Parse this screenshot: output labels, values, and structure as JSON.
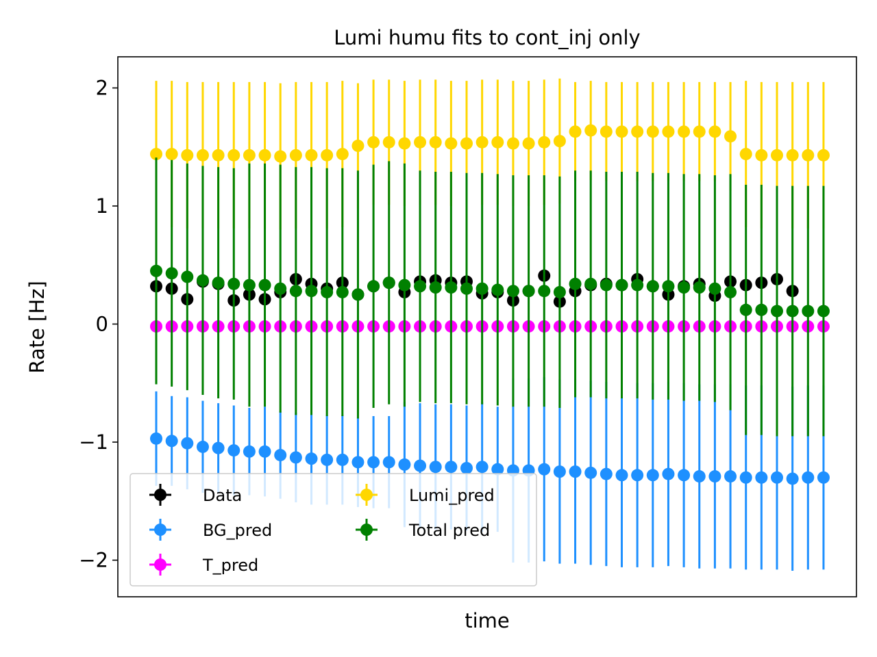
{
  "chart_data": {
    "type": "scatter",
    "title": "Lumi humu fits to cont_inj only",
    "xlabel": "time",
    "ylabel": "Rate [Hz]",
    "ylim": [
      -2.3,
      2.25
    ],
    "xlim": [
      -2.5,
      47.5
    ],
    "yticks": [
      {
        "value": 2,
        "label": "2"
      },
      {
        "value": 1,
        "label": "1"
      },
      {
        "value": 0,
        "label": "0"
      },
      {
        "value": -1,
        "label": "−1"
      },
      {
        "value": -2,
        "label": "−2"
      }
    ],
    "x_ticks_visible": false,
    "grid": false,
    "legend": {
      "placement": "lower-left",
      "columns": 2
    },
    "x": [
      0,
      1,
      2,
      3,
      4,
      5,
      6,
      7,
      8,
      9,
      10,
      11,
      12,
      13,
      14,
      15,
      16,
      17,
      18,
      19,
      20,
      21,
      22,
      23,
      24,
      25,
      26,
      27,
      28,
      29,
      30,
      31,
      32,
      33,
      34,
      35,
      36,
      37,
      38,
      39,
      40,
      41,
      42,
      43,
      44,
      45
    ],
    "series": [
      {
        "name": "Data",
        "color": "#000000",
        "values": [
          0.32,
          0.3,
          0.21,
          0.36,
          0.34,
          0.2,
          0.25,
          0.21,
          0.27,
          0.38,
          0.34,
          0.3,
          0.35,
          0.25,
          0.32,
          0.35,
          0.27,
          0.36,
          0.37,
          0.35,
          0.36,
          0.26,
          0.27,
          0.2,
          0.28,
          0.41,
          0.19,
          0.28,
          0.33,
          0.34,
          0.33,
          0.38,
          0.32,
          0.25,
          0.32,
          0.34,
          0.24,
          0.36,
          0.33,
          0.35,
          0.38,
          0.28
        ],
        "values_x": [
          0,
          1,
          2,
          3,
          4,
          5,
          6,
          7,
          8,
          9,
          10,
          11,
          12,
          13,
          14,
          15,
          16,
          17,
          18,
          19,
          20,
          21,
          22,
          23,
          24,
          25,
          26,
          27,
          28,
          29,
          30,
          31,
          32,
          33,
          34,
          35,
          36,
          37,
          38,
          39,
          40,
          41
        ],
        "err": [
          0.0,
          0.0,
          0.0,
          0.0,
          0.0,
          0.0,
          0.0,
          0.0,
          0.0,
          0.0,
          0.0,
          0.0,
          0.0,
          0.0,
          0.0,
          0.0,
          0.0,
          0.0,
          0.0,
          0.0,
          0.0,
          0.0,
          0.0,
          0.0,
          0.0,
          0.0,
          0.0,
          0.0,
          0.0,
          0.0,
          0.0,
          0.0,
          0.0,
          0.0,
          0.0,
          0.0,
          0.0,
          0.0,
          0.0,
          0.0,
          0.0,
          0.0
        ]
      },
      {
        "name": "BG_pred",
        "color": "#1e90ff",
        "values": [
          -0.97,
          -0.99,
          -1.01,
          -1.04,
          -1.05,
          -1.07,
          -1.08,
          -1.08,
          -1.11,
          -1.13,
          -1.14,
          -1.15,
          -1.15,
          -1.17,
          -1.17,
          -1.17,
          -1.19,
          -1.2,
          -1.21,
          -1.21,
          -1.22,
          -1.21,
          -1.23,
          -1.24,
          -1.24,
          -1.23,
          -1.25,
          -1.25,
          -1.26,
          -1.27,
          -1.28,
          -1.28,
          -1.28,
          -1.27,
          -1.28,
          -1.29,
          -1.29,
          -1.29,
          -1.3,
          -1.3,
          -1.3,
          -1.31,
          -1.3,
          -1.3
        ],
        "values_x": [
          0,
          1,
          2,
          3,
          4,
          5,
          6,
          7,
          8,
          9,
          10,
          11,
          12,
          13,
          14,
          15,
          16,
          17,
          18,
          19,
          20,
          21,
          22,
          23,
          24,
          25,
          26,
          27,
          28,
          29,
          30,
          31,
          32,
          33,
          34,
          35,
          36,
          37,
          38,
          39,
          40,
          41,
          42,
          43
        ],
        "err": [
          0.4,
          0.38,
          0.39,
          0.39,
          0.38,
          0.38,
          0.37,
          0.38,
          0.37,
          0.38,
          0.39,
          0.38,
          0.38,
          0.38,
          0.39,
          0.39,
          0.53,
          0.53,
          0.53,
          0.53,
          0.53,
          0.55,
          0.53,
          0.78,
          0.78,
          0.78,
          0.78,
          0.78,
          0.78,
          0.78,
          0.78,
          0.78,
          0.78,
          0.78,
          0.78,
          0.78,
          0.78,
          0.78,
          0.78,
          0.78,
          0.78,
          0.78,
          0.78,
          0.78
        ]
      },
      {
        "name": "T_pred",
        "color": "#ff00ff",
        "values": [
          -0.02,
          -0.02,
          -0.02,
          -0.02,
          -0.02,
          -0.02,
          -0.02,
          -0.02,
          -0.02,
          -0.02,
          -0.02,
          -0.02,
          -0.02,
          -0.02,
          -0.02,
          -0.02,
          -0.02,
          -0.02,
          -0.02,
          -0.02,
          -0.02,
          -0.02,
          -0.02,
          -0.02,
          -0.02,
          -0.02,
          -0.02,
          -0.02,
          -0.02,
          -0.02,
          -0.02,
          -0.02,
          -0.02,
          -0.02,
          -0.02,
          -0.02,
          -0.02,
          -0.02,
          -0.02,
          -0.02,
          -0.02,
          -0.02,
          -0.02,
          -0.02
        ],
        "values_x": [
          0,
          1,
          2,
          3,
          4,
          5,
          6,
          7,
          8,
          9,
          10,
          11,
          12,
          13,
          14,
          15,
          16,
          17,
          18,
          19,
          20,
          21,
          22,
          23,
          24,
          25,
          26,
          27,
          28,
          29,
          30,
          31,
          32,
          33,
          34,
          35,
          36,
          37,
          38,
          39,
          40,
          41,
          42,
          43
        ],
        "err": [
          0,
          0,
          0,
          0,
          0,
          0,
          0,
          0,
          0,
          0,
          0,
          0,
          0,
          0,
          0,
          0,
          0,
          0,
          0,
          0,
          0,
          0,
          0,
          0,
          0,
          0,
          0,
          0,
          0,
          0,
          0,
          0,
          0,
          0,
          0,
          0,
          0,
          0,
          0,
          0,
          0,
          0,
          0,
          0
        ]
      },
      {
        "name": "Lumi_pred",
        "color": "#ffd700",
        "values": [
          1.44,
          1.44,
          1.43,
          1.43,
          1.43,
          1.43,
          1.43,
          1.43,
          1.42,
          1.43,
          1.43,
          1.43,
          1.44,
          1.51,
          1.54,
          1.54,
          1.53,
          1.54,
          1.54,
          1.53,
          1.53,
          1.54,
          1.54,
          1.53,
          1.53,
          1.54,
          1.55,
          1.63,
          1.64,
          1.63,
          1.63,
          1.63,
          1.63,
          1.63,
          1.63,
          1.63,
          1.63,
          1.59,
          1.44,
          1.43,
          1.43,
          1.43,
          1.43,
          1.43
        ],
        "values_x": [
          0,
          1,
          2,
          3,
          4,
          5,
          6,
          7,
          8,
          9,
          10,
          11,
          12,
          13,
          14,
          15,
          16,
          17,
          18,
          19,
          20,
          21,
          22,
          23,
          24,
          25,
          26,
          27,
          28,
          29,
          30,
          31,
          32,
          33,
          34,
          35,
          36,
          37,
          38,
          39,
          40,
          41,
          42,
          43
        ],
        "err": [
          0.62,
          0.62,
          0.62,
          0.62,
          0.62,
          0.62,
          0.62,
          0.62,
          0.62,
          0.62,
          0.62,
          0.62,
          0.62,
          0.53,
          0.53,
          0.53,
          0.53,
          0.53,
          0.53,
          0.53,
          0.53,
          0.53,
          0.53,
          0.53,
          0.53,
          0.53,
          0.53,
          0.42,
          0.42,
          0.42,
          0.42,
          0.42,
          0.42,
          0.42,
          0.42,
          0.42,
          0.42,
          0.46,
          0.62,
          0.62,
          0.62,
          0.62,
          0.62,
          0.62
        ]
      },
      {
        "name": "Total pred",
        "color": "#008000",
        "values": [
          0.45,
          0.43,
          0.4,
          0.37,
          0.35,
          0.34,
          0.33,
          0.33,
          0.3,
          0.28,
          0.28,
          0.27,
          0.27,
          0.25,
          0.32,
          0.35,
          0.33,
          0.32,
          0.31,
          0.31,
          0.3,
          0.3,
          0.29,
          0.28,
          0.28,
          0.28,
          0.27,
          0.34,
          0.34,
          0.33,
          0.33,
          0.33,
          0.32,
          0.32,
          0.31,
          0.31,
          0.3,
          0.27,
          0.12,
          0.12,
          0.11,
          0.11,
          0.11,
          0.11
        ],
        "values_x": [
          0,
          1,
          2,
          3,
          4,
          5,
          6,
          7,
          8,
          9,
          10,
          11,
          12,
          13,
          14,
          15,
          16,
          17,
          18,
          19,
          20,
          21,
          22,
          23,
          24,
          25,
          26,
          27,
          28,
          29,
          30,
          31,
          32,
          33,
          34,
          35,
          36,
          37,
          38,
          39,
          40,
          41,
          42,
          43
        ],
        "err": [
          0.96,
          0.96,
          0.96,
          0.97,
          0.98,
          0.98,
          1.03,
          1.03,
          1.05,
          1.05,
          1.05,
          1.05,
          1.05,
          1.05,
          1.03,
          1.03,
          1.03,
          0.98,
          0.98,
          0.98,
          0.98,
          0.98,
          0.98,
          0.98,
          0.98,
          0.98,
          0.98,
          0.96,
          0.96,
          0.96,
          0.96,
          0.96,
          0.96,
          0.96,
          0.96,
          0.96,
          0.96,
          1.0,
          1.06,
          1.06,
          1.06,
          1.06,
          1.06,
          1.06
        ]
      }
    ]
  }
}
